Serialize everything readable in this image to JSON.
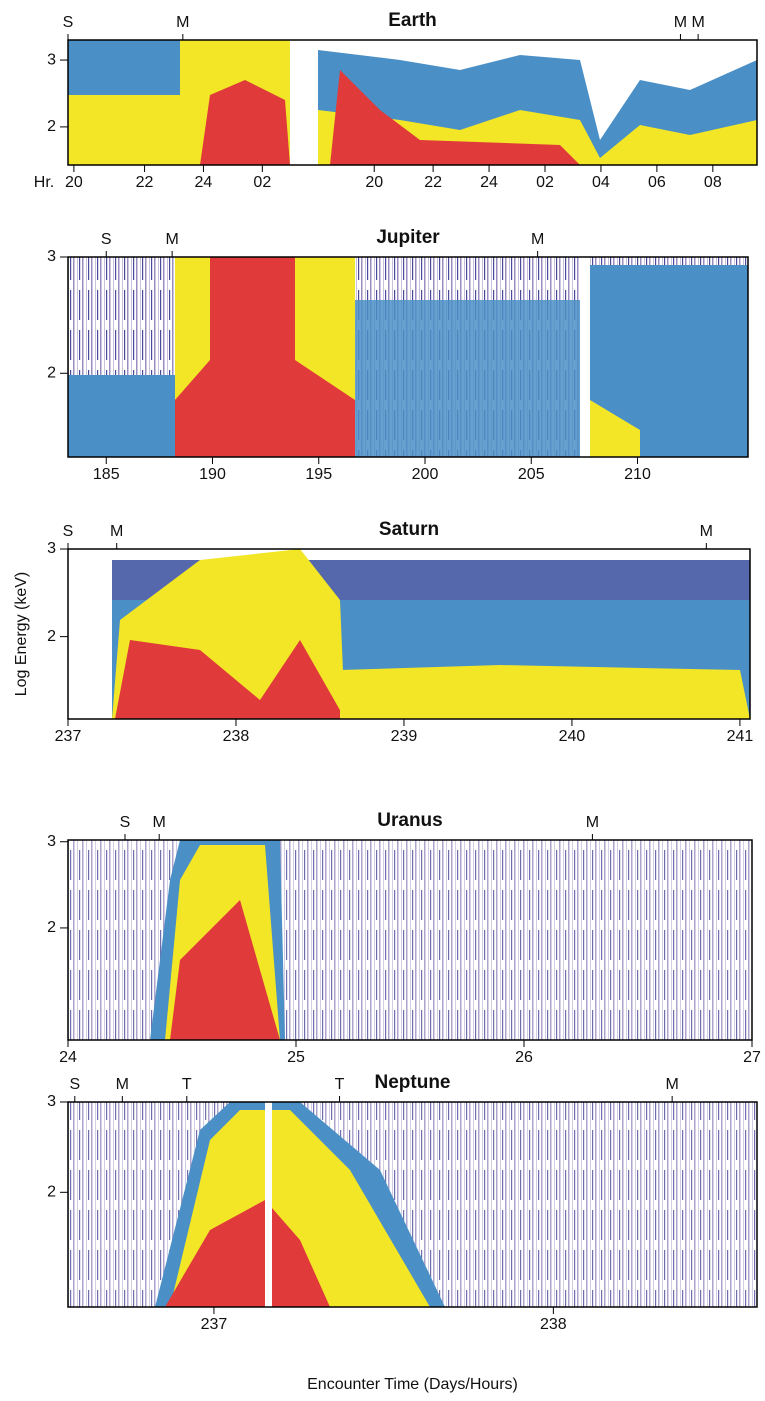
{
  "chart_data": [
    {
      "type": "spectrogram",
      "title": "Earth",
      "x_unit_label": "Hr.",
      "xlim": [
        0,
        23.4
      ],
      "ylim": [
        1.43,
        3.3
      ],
      "xticks": [
        {
          "value": 0.2,
          "label": "20"
        },
        {
          "value": 2.6,
          "label": "22"
        },
        {
          "value": 4.6,
          "label": "24"
        },
        {
          "value": 6.6,
          "label": "02"
        },
        {
          "value": 10.4,
          "label": "20"
        },
        {
          "value": 12.4,
          "label": "22"
        },
        {
          "value": 14.3,
          "label": "24"
        },
        {
          "value": 16.2,
          "label": "02"
        },
        {
          "value": 18.1,
          "label": "04"
        },
        {
          "value": 20,
          "label": "06"
        },
        {
          "value": 21.9,
          "label": "08"
        }
      ],
      "yticks": [
        2,
        3
      ],
      "markers": [
        {
          "label": "S",
          "x": 0
        },
        {
          "label": "M",
          "x": 3.9
        },
        {
          "label": "M",
          "x": 20.8
        },
        {
          "label": "M",
          "x": 21.4
        }
      ]
    },
    {
      "type": "spectrogram",
      "title": "Jupiter",
      "xlim": [
        183.2,
        215.2
      ],
      "ylim": [
        1.28,
        3.0
      ],
      "xticks": [
        185,
        190,
        195,
        200,
        205,
        210
      ],
      "yticks": [
        2,
        3
      ],
      "markers": [
        {
          "label": "S",
          "x": 185
        },
        {
          "label": "M",
          "x": 188.1
        },
        {
          "label": "M",
          "x": 205.3
        }
      ]
    },
    {
      "type": "spectrogram",
      "title": "Saturn",
      "ylabel": "Log Energy (keV)",
      "xlim": [
        237,
        241.06
      ],
      "ylim": [
        1.06,
        3.0
      ],
      "xticks": [
        237,
        238,
        239,
        240,
        241
      ],
      "yticks": [
        2,
        3
      ],
      "markers": [
        {
          "label": "S",
          "x": 237
        },
        {
          "label": "M",
          "x": 237.29
        },
        {
          "label": "M",
          "x": 240.8
        }
      ]
    },
    {
      "type": "spectrogram",
      "title": "Uranus",
      "xlim": [
        24,
        27
      ],
      "ylim": [
        0.7,
        3.02
      ],
      "xticks": [
        24,
        25,
        26,
        27
      ],
      "yticks": [
        2,
        3
      ],
      "markers": [
        {
          "label": "S",
          "x": 24.25
        },
        {
          "label": "M",
          "x": 24.4
        },
        {
          "label": "M",
          "x": 26.3
        }
      ]
    },
    {
      "type": "spectrogram",
      "title": "Neptune",
      "xlabel": "Encounter Time (Days/Hours)",
      "xlim": [
        236.57,
        238.6
      ],
      "ylim": [
        0.73,
        3.0
      ],
      "xticks": [
        237,
        238
      ],
      "yticks": [
        2,
        3
      ],
      "markers": [
        {
          "label": "S",
          "x": 236.59
        },
        {
          "label": "M",
          "x": 236.73
        },
        {
          "label": "T",
          "x": 236.92
        },
        {
          "label": "T",
          "x": 237.37
        },
        {
          "label": "M",
          "x": 238.35
        }
      ]
    }
  ]
}
